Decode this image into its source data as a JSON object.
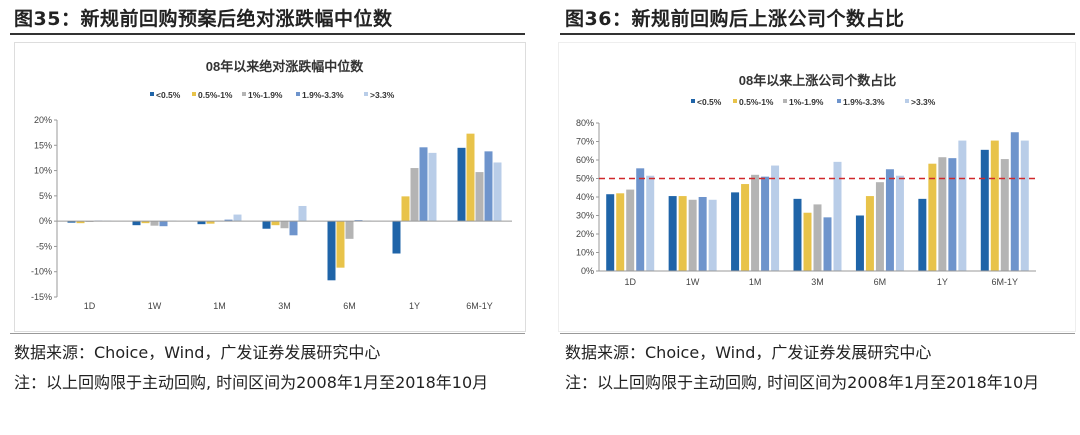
{
  "figures": [
    {
      "title": "图35：新规前回购预案后绝对涨跌幅中位数",
      "source": "数据来源：Choice，Wind，广发证券发展研究中心",
      "note": "注：以上回购限于主动回购, 时间区间为2008年1月至2018年10月"
    },
    {
      "title": "图36：新规前回购后上涨公司个数占比",
      "source": "数据来源：Choice，Wind，广发证券发展研究中心",
      "note": "注：以上回购限于主动回购, 时间区间为2008年1月至2018年10月"
    }
  ],
  "chart_data": [
    {
      "type": "bar",
      "title": "08年以来绝对涨跌幅中位数",
      "categories": [
        "1D",
        "1W",
        "1M",
        "3M",
        "6M",
        "1Y",
        "6M-1Y"
      ],
      "ylim": [
        -15,
        20
      ],
      "yticks": [
        -15,
        -10,
        -5,
        0,
        5,
        10,
        15,
        20
      ],
      "ytick_format": "percent",
      "legend": "top",
      "grid": false,
      "series": [
        {
          "name": "<0.5%",
          "color": "#1f64a8",
          "values": [
            -0.3,
            -0.8,
            -0.6,
            -1.5,
            -11.7,
            -6.4,
            14.5
          ]
        },
        {
          "name": "0.5%-1%",
          "color": "#e8c34a",
          "values": [
            -0.4,
            -0.4,
            -0.5,
            -0.8,
            -9.2,
            4.9,
            17.3
          ]
        },
        {
          "name": "1%-1.9%",
          "color": "#b4b4b4",
          "values": [
            -0.1,
            -0.9,
            0.1,
            -1.4,
            -3.5,
            10.5,
            9.7
          ]
        },
        {
          "name": "1.9%-3.3%",
          "color": "#6e94cc",
          "values": [
            0.1,
            -1.0,
            0.3,
            -2.8,
            0.2,
            14.6,
            13.8
          ]
        },
        {
          "name": ">3.3%",
          "color": "#b9cde8",
          "values": [
            0.1,
            0.1,
            1.3,
            3.0,
            0.1,
            13.5,
            11.6
          ]
        }
      ]
    },
    {
      "type": "bar",
      "title": "08年以来上涨公司个数占比",
      "categories": [
        "1D",
        "1W",
        "1M",
        "3M",
        "6M",
        "1Y",
        "6M-1Y"
      ],
      "ylim": [
        0,
        80
      ],
      "yticks": [
        0,
        10,
        20,
        30,
        40,
        50,
        60,
        70,
        80
      ],
      "ytick_format": "percent",
      "legend": "top",
      "grid": false,
      "reference_line": {
        "value": 50,
        "color": "#d0282a",
        "style": "dashed"
      },
      "series": [
        {
          "name": "<0.5%",
          "color": "#1f64a8",
          "values": [
            41.5,
            40.5,
            42.5,
            39,
            30,
            39,
            65.5
          ]
        },
        {
          "name": "0.5%-1%",
          "color": "#e8c34a",
          "values": [
            42,
            40.5,
            47,
            31.5,
            40.5,
            58,
            70.5
          ]
        },
        {
          "name": "1%-1.9%",
          "color": "#b4b4b4",
          "values": [
            44,
            38.5,
            52,
            36,
            48,
            61.5,
            60.5
          ]
        },
        {
          "name": "1.9%-3.3%",
          "color": "#6e94cc",
          "values": [
            55.5,
            40,
            51,
            29,
            55,
            61,
            75
          ]
        },
        {
          "name": ">3.3%",
          "color": "#b9cde8",
          "values": [
            51.5,
            38.5,
            57,
            59,
            51.5,
            70.5,
            70.5
          ]
        }
      ]
    }
  ]
}
